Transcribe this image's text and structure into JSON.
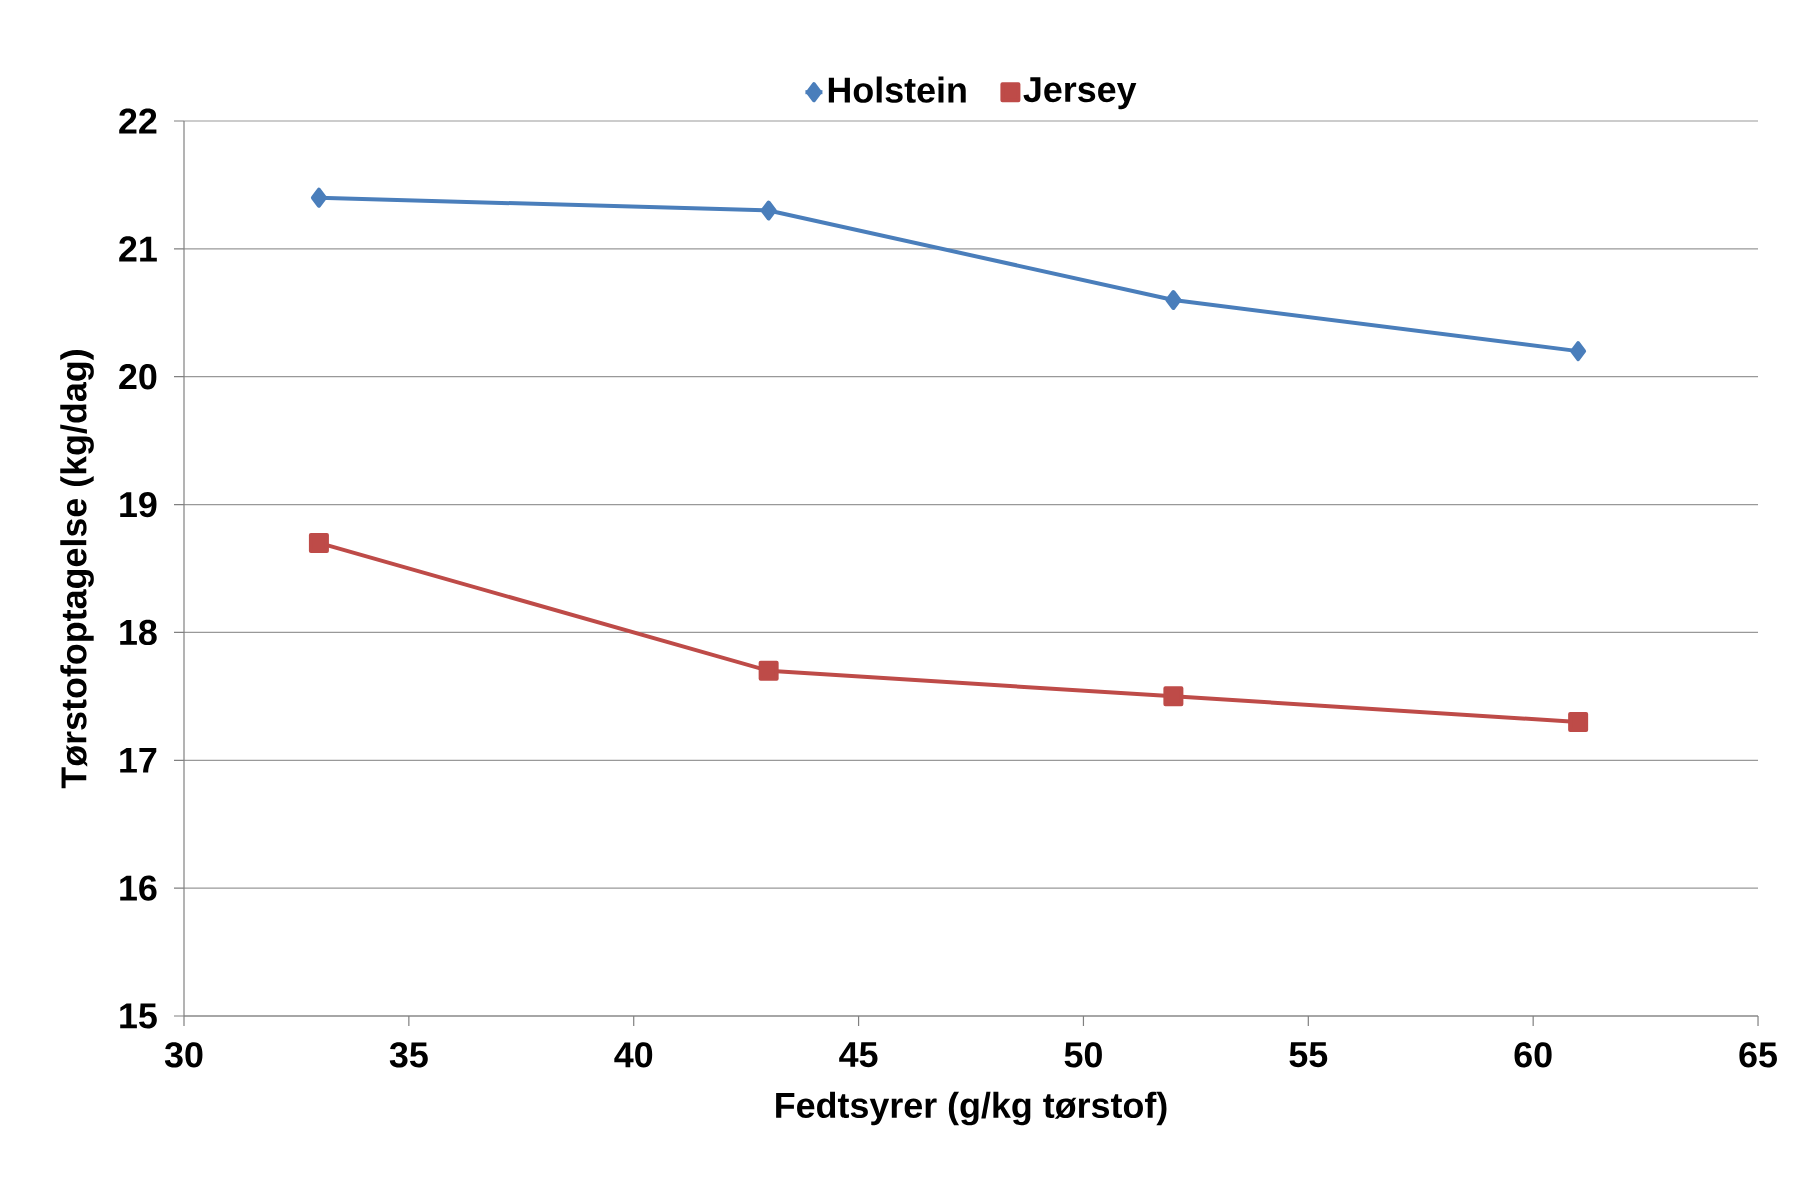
{
  "chart_data": {
    "type": "line",
    "xlabel": "Fedtsyrer (g/kg tørstof)",
    "ylabel": "Tørstofoptagelse (kg/dag)",
    "x": [
      33,
      43,
      52,
      61
    ],
    "series": [
      {
        "name": "Holstein",
        "color": "#4a7ebb",
        "marker": "diamond",
        "values": [
          21.4,
          21.3,
          20.6,
          20.2
        ]
      },
      {
        "name": "Jersey",
        "color": "#be4b48",
        "marker": "square",
        "values": [
          18.7,
          17.7,
          17.5,
          17.3
        ]
      }
    ],
    "xlim": [
      30,
      65
    ],
    "xticks": [
      30,
      35,
      40,
      45,
      50,
      55,
      60,
      65
    ],
    "ylim": [
      15,
      22
    ],
    "yticks": [
      15,
      16,
      17,
      18,
      19,
      20,
      21,
      22
    ],
    "grid": "y",
    "legend": "top",
    "line_style": "solid"
  }
}
